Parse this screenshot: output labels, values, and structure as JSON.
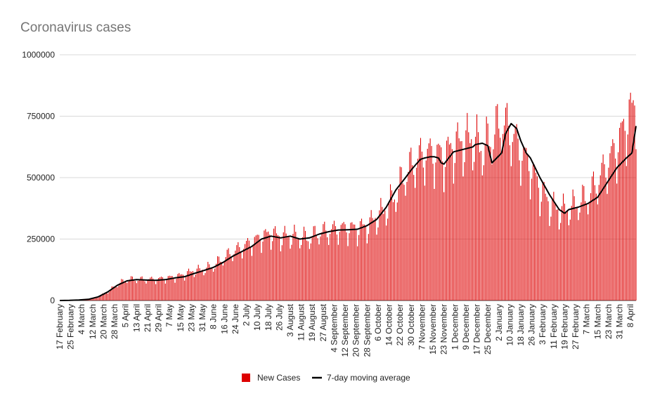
{
  "chart_data": {
    "type": "bar",
    "title": "Coronavirus cases",
    "xlabel": "",
    "ylabel": "",
    "ylim": [
      0,
      1000000
    ],
    "y_ticks": [
      "0",
      "250000",
      "500000",
      "750000",
      "1000000"
    ],
    "y_tick_values": [
      0,
      250000,
      500000,
      750000,
      1000000
    ],
    "grid": true,
    "legend_position": "bottom",
    "x_start": "2020-02-17",
    "days": 420,
    "categories": [
      "17 February",
      "25 February",
      "4 March",
      "12 March",
      "20 March",
      "28 March",
      "5 April",
      "13 April",
      "21 April",
      "29 April",
      "7 May",
      "15 May",
      "23 May",
      "31 May",
      "8 June",
      "16 June",
      "24 June",
      "2 July",
      "10 July",
      "18 July",
      "26 July",
      "3 August",
      "11 August",
      "19 August",
      "27 August",
      "4 September",
      "12 September",
      "20 September",
      "28 September",
      "6 October",
      "14 October",
      "22 October",
      "30 October",
      "7 November",
      "15 November",
      "23 November",
      "1 December",
      "9 December",
      "17 December",
      "25 December",
      "2 January",
      "10 January",
      "18 January",
      "26 January",
      "3 February",
      "11 February",
      "19 February",
      "27 February",
      "7 March",
      "15 March",
      "23 March",
      "31 March",
      "8 April"
    ],
    "series": [
      {
        "name": "New Cases",
        "type": "bar",
        "color": "#dd0000",
        "anchors": [
          [
            0,
            0
          ],
          [
            7,
            1000
          ],
          [
            14,
            3000
          ],
          [
            21,
            6000
          ],
          [
            28,
            15000
          ],
          [
            35,
            35000
          ],
          [
            42,
            65000
          ],
          [
            49,
            85000
          ],
          [
            56,
            85000
          ],
          [
            63,
            85000
          ],
          [
            70,
            85000
          ],
          [
            77,
            90000
          ],
          [
            84,
            95000
          ],
          [
            91,
            105000
          ],
          [
            98,
            120000
          ],
          [
            105,
            125000
          ],
          [
            112,
            140000
          ],
          [
            119,
            170000
          ],
          [
            126,
            195000
          ],
          [
            133,
            215000
          ],
          [
            140,
            235000
          ],
          [
            147,
            255000
          ],
          [
            154,
            270000
          ],
          [
            161,
            255000
          ],
          [
            168,
            260000
          ],
          [
            175,
            255000
          ],
          [
            182,
            250000
          ],
          [
            189,
            275000
          ],
          [
            196,
            280000
          ],
          [
            203,
            290000
          ],
          [
            210,
            290000
          ],
          [
            217,
            290000
          ],
          [
            224,
            300000
          ],
          [
            231,
            335000
          ],
          [
            238,
            370000
          ],
          [
            245,
            430000
          ],
          [
            252,
            510000
          ],
          [
            259,
            560000
          ],
          [
            266,
            590000
          ],
          [
            273,
            590000
          ],
          [
            280,
            580000
          ],
          [
            287,
            620000
          ],
          [
            294,
            640000
          ],
          [
            301,
            650000
          ],
          [
            308,
            610000
          ],
          [
            315,
            660000
          ],
          [
            322,
            720000
          ],
          [
            329,
            680000
          ],
          [
            336,
            600000
          ],
          [
            343,
            540000
          ],
          [
            350,
            450000
          ],
          [
            357,
            390000
          ],
          [
            364,
            360000
          ],
          [
            371,
            370000
          ],
          [
            378,
            390000
          ],
          [
            385,
            420000
          ],
          [
            392,
            480000
          ],
          [
            399,
            550000
          ],
          [
            406,
            620000
          ],
          [
            413,
            720000
          ],
          [
            420,
            800000
          ]
        ]
      },
      {
        "name": "7-day moving average",
        "type": "line",
        "color": "#000000",
        "x": [
          0,
          7,
          14,
          21,
          28,
          35,
          42,
          49,
          56,
          63,
          70,
          77,
          84,
          91,
          98,
          105,
          112,
          119,
          126,
          133,
          140,
          147,
          154,
          161,
          168,
          175,
          182,
          189,
          196,
          203,
          210,
          217,
          224,
          231,
          238,
          245,
          252,
          256,
          259,
          263,
          266,
          270,
          273,
          276,
          278,
          280,
          287,
          294,
          301,
          303,
          308,
          312,
          315,
          322,
          325,
          329,
          333,
          336,
          340,
          343,
          350,
          357,
          364,
          368,
          371,
          378,
          385,
          392,
          399,
          406,
          413,
          417,
          420
        ],
        "values": [
          0,
          500,
          2000,
          5000,
          15000,
          35000,
          62000,
          80000,
          85000,
          83000,
          82000,
          85000,
          92000,
          97000,
          110000,
          122000,
          135000,
          155000,
          180000,
          200000,
          220000,
          250000,
          262000,
          255000,
          262000,
          250000,
          255000,
          270000,
          280000,
          287000,
          288000,
          290000,
          305000,
          330000,
          380000,
          450000,
          500000,
          530000,
          550000,
          575000,
          580000,
          585000,
          585000,
          580000,
          560000,
          555000,
          605000,
          615000,
          625000,
          635000,
          640000,
          630000,
          560000,
          600000,
          680000,
          720000,
          700000,
          650000,
          600000,
          580000,
          500000,
          430000,
          370000,
          355000,
          370000,
          380000,
          395000,
          420000,
          480000,
          540000,
          580000,
          600000,
          710000
        ]
      }
    ],
    "legend": [
      "New Cases",
      "7-day moving average"
    ]
  }
}
